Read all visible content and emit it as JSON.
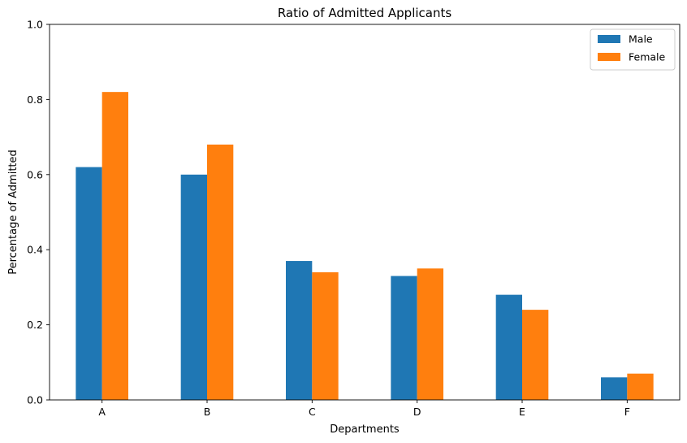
{
  "chart_data": {
    "type": "bar",
    "title": "Ratio of Admitted Applicants",
    "xlabel": "Departments",
    "ylabel": "Percentage of Admitted",
    "categories": [
      "A",
      "B",
      "C",
      "D",
      "E",
      "F"
    ],
    "series": [
      {
        "name": "Male",
        "color": "#1f77b4",
        "values": [
          0.62,
          0.6,
          0.37,
          0.33,
          0.28,
          0.06
        ]
      },
      {
        "name": "Female",
        "color": "#ff7f0e",
        "values": [
          0.82,
          0.68,
          0.34,
          0.35,
          0.24,
          0.07
        ]
      }
    ],
    "ylim": [
      0,
      1.0
    ],
    "yticks": [
      "0.0",
      "0.2",
      "0.4",
      "0.6",
      "0.8",
      "1.0"
    ],
    "grid": false,
    "legend_position": "top-right"
  }
}
